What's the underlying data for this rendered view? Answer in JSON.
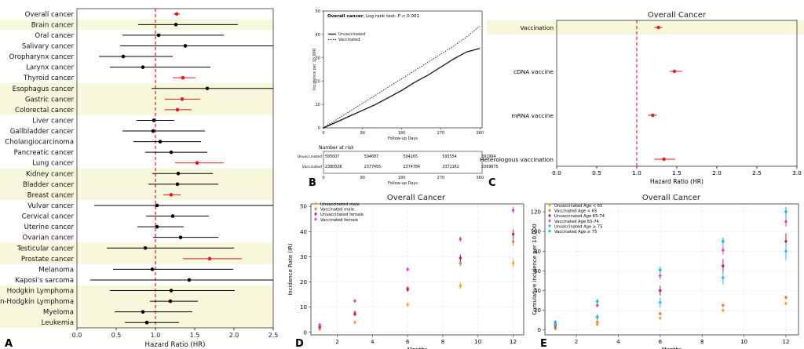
{
  "chart_data": [
    {
      "id": "A",
      "type": "forest",
      "panel_label": "A",
      "xlabel": "Hazard Ratio (HR)",
      "xlim": [
        0.0,
        2.5
      ],
      "xticks": [
        "0.0",
        "0.5",
        "1.0",
        "1.5",
        "2.0",
        "2.5"
      ],
      "reference_line": 1.0,
      "highlight_color": "#e41a1c",
      "rows": [
        {
          "label": "Overall cancer",
          "hr": 1.27,
          "lo": 1.23,
          "hi": 1.31,
          "sig": true,
          "band": false
        },
        {
          "label": "Brain cancer",
          "hr": 1.26,
          "lo": 0.78,
          "hi": 2.05,
          "sig": false,
          "band": true
        },
        {
          "label": "Oral cancer",
          "hr": 1.04,
          "lo": 0.58,
          "hi": 1.87,
          "sig": false,
          "band": false
        },
        {
          "label": "Salivary cancer",
          "hr": 1.38,
          "lo": 0.55,
          "hi": 2.5,
          "sig": false,
          "band": false
        },
        {
          "label": "Oropharynx cancer",
          "hr": 0.59,
          "lo": 0.28,
          "hi": 1.22,
          "sig": false,
          "band": false
        },
        {
          "label": "Larynx cancer",
          "hr": 0.84,
          "lo": 0.42,
          "hi": 1.7,
          "sig": false,
          "band": false
        },
        {
          "label": "Thyroid cancer",
          "hr": 1.35,
          "lo": 1.22,
          "hi": 1.51,
          "sig": true,
          "band": false
        },
        {
          "label": "Esophagus cancer",
          "hr": 1.66,
          "lo": 0.95,
          "hi": 2.5,
          "sig": false,
          "band": true
        },
        {
          "label": "Gastric cancer",
          "hr": 1.34,
          "lo": 1.12,
          "hi": 1.57,
          "sig": true,
          "band": true
        },
        {
          "label": "Colorectal cancer",
          "hr": 1.28,
          "lo": 1.12,
          "hi": 1.46,
          "sig": true,
          "band": true
        },
        {
          "label": "Liver cancer",
          "hr": 0.98,
          "lo": 0.76,
          "hi": 1.24,
          "sig": false,
          "band": false
        },
        {
          "label": "Gallbladder cancer",
          "hr": 0.97,
          "lo": 0.58,
          "hi": 1.63,
          "sig": false,
          "band": false
        },
        {
          "label": "Cholangiocarcinoma",
          "hr": 1.06,
          "lo": 0.72,
          "hi": 1.58,
          "sig": false,
          "band": false
        },
        {
          "label": "Pancreatic cancer",
          "hr": 1.2,
          "lo": 0.87,
          "hi": 1.66,
          "sig": false,
          "band": false
        },
        {
          "label": "Lung cancer",
          "hr": 1.53,
          "lo": 1.25,
          "hi": 1.87,
          "sig": true,
          "band": false
        },
        {
          "label": "Kidney cancer",
          "hr": 1.29,
          "lo": 0.96,
          "hi": 1.73,
          "sig": false,
          "band": true
        },
        {
          "label": "Bladder cancer",
          "hr": 1.28,
          "lo": 0.91,
          "hi": 1.8,
          "sig": false,
          "band": true
        },
        {
          "label": "Breast cancer",
          "hr": 1.2,
          "lo": 1.1,
          "hi": 1.32,
          "sig": true,
          "band": true
        },
        {
          "label": "Vulvar cancer",
          "hr": 1.02,
          "lo": 0.22,
          "hi": 2.5,
          "sig": false,
          "band": false
        },
        {
          "label": "Cervical cancer",
          "hr": 1.22,
          "lo": 0.88,
          "hi": 1.68,
          "sig": false,
          "band": false
        },
        {
          "label": "Uterine cancer",
          "hr": 1.02,
          "lo": 0.77,
          "hi": 1.36,
          "sig": false,
          "band": false
        },
        {
          "label": "Ovarian cancer",
          "hr": 1.32,
          "lo": 0.97,
          "hi": 1.8,
          "sig": false,
          "band": false
        },
        {
          "label": "Testicular cancer",
          "hr": 0.87,
          "lo": 0.38,
          "hi": 2.0,
          "sig": false,
          "band": true
        },
        {
          "label": "Prostate cancer",
          "hr": 1.69,
          "lo": 1.35,
          "hi": 2.1,
          "sig": true,
          "band": true
        },
        {
          "label": "Melanoma",
          "hr": 0.96,
          "lo": 0.46,
          "hi": 1.99,
          "sig": false,
          "band": false
        },
        {
          "label": "Kaposi's sarcoma",
          "hr": 1.43,
          "lo": 0.17,
          "hi": 2.5,
          "sig": false,
          "band": false
        },
        {
          "label": "Hodgkin Lymphoma",
          "hr": 1.2,
          "lo": 0.42,
          "hi": 2.01,
          "sig": false,
          "band": true
        },
        {
          "label": "Non-Hodgkin Lymphoma",
          "hr": 1.19,
          "lo": 0.93,
          "hi": 1.54,
          "sig": false,
          "band": true
        },
        {
          "label": "Myeloma",
          "hr": 0.84,
          "lo": 0.48,
          "hi": 1.47,
          "sig": false,
          "band": true
        },
        {
          "label": "Leukemia",
          "hr": 0.89,
          "lo": 0.61,
          "hi": 1.3,
          "sig": false,
          "band": true
        }
      ]
    },
    {
      "id": "B",
      "type": "line",
      "panel_label": "B",
      "title": "Overall cancer",
      "title_suffix": ", Log rank test: ",
      "p_text": "P",
      "p_value": " < 0.001",
      "ylabel": "Incidence per 10,000",
      "xlabel": "Follow-up Days",
      "xlim": [
        0,
        365
      ],
      "ylim": [
        0,
        50
      ],
      "xticks": [
        "0",
        "90",
        "180",
        "270",
        "360"
      ],
      "yticks": [
        "0",
        "10",
        "20",
        "30",
        "40",
        "50"
      ],
      "series": [
        {
          "name": "Unvaccinated",
          "style": "solid",
          "x": [
            0,
            30,
            60,
            90,
            120,
            150,
            180,
            210,
            240,
            270,
            300,
            330,
            360
          ],
          "y": [
            0,
            2.5,
            5,
            7.5,
            10,
            13,
            16,
            19.5,
            22.5,
            26,
            29.5,
            32.5,
            34
          ]
        },
        {
          "name": "Vaccinated",
          "style": "dotted",
          "x": [
            0,
            30,
            60,
            90,
            120,
            150,
            180,
            210,
            240,
            270,
            300,
            330,
            360
          ],
          "y": [
            0,
            3.5,
            7,
            10.5,
            14,
            17.5,
            21,
            24.5,
            28,
            31.5,
            35,
            39,
            43.5
          ]
        }
      ],
      "risk_table": {
        "title": "Number at risk",
        "xlabel": "Follow-up Days",
        "xticks": [
          "0",
          "90",
          "180",
          "270",
          "360"
        ],
        "rows": [
          {
            "name": "Unvaccinated",
            "values": [
              "595007",
              "594687",
              "594165",
              "593554",
              "592994"
            ]
          },
          {
            "name": "Vaccinated",
            "values": [
              "2380028",
              "2377455",
              "2374784",
              "2372162",
              "2369675"
            ]
          }
        ]
      }
    },
    {
      "id": "C",
      "type": "forest",
      "panel_label": "C",
      "title": "Overall Cancer",
      "xlabel": "Hazard Ratio (HR)",
      "xlim": [
        0.0,
        3.0
      ],
      "xticks": [
        "0.0",
        "0.5",
        "1.0",
        "1.5",
        "2.0",
        "2.5",
        "3.0"
      ],
      "reference_line": 1.0,
      "rows": [
        {
          "label": "Vaccination",
          "hr": 1.27,
          "lo": 1.22,
          "hi": 1.32,
          "band": true
        },
        {
          "label": "cDNA vaccine",
          "hr": 1.47,
          "lo": 1.41,
          "hi": 1.57,
          "band": false
        },
        {
          "label": "mRNA vaccine",
          "hr": 1.2,
          "lo": 1.14,
          "hi": 1.25,
          "band": false
        },
        {
          "label": "Heterologous vaccination",
          "hr": 1.34,
          "lo": 1.22,
          "hi": 1.48,
          "band": false
        }
      ]
    },
    {
      "id": "D",
      "type": "scatter",
      "panel_label": "D",
      "title": "Overall Cancer",
      "xlabel": "Months",
      "ylabel": "Incidence Rate (IR)",
      "xlim": [
        0.5,
        12.6
      ],
      "ylim": [
        -1,
        51
      ],
      "xticks": [
        2,
        4,
        6,
        8,
        10,
        12
      ],
      "yticks": [
        0,
        10,
        20,
        30,
        40,
        50
      ],
      "series": [
        {
          "name": "Unvaccinated male",
          "color": "#f5a623",
          "x": [
            1,
            3,
            6,
            9,
            12
          ],
          "y": [
            1.2,
            4.0,
            11.0,
            18.5,
            27.5
          ],
          "err": [
            0.5,
            0.6,
            0.9,
            1.2,
            1.6
          ]
        },
        {
          "name": "Vaccinated male",
          "color": "#e07b39",
          "x": [
            1,
            3,
            6,
            9,
            12
          ],
          "y": [
            1.8,
            8.0,
            17.5,
            27.5,
            36.0
          ],
          "err": [
            0.4,
            0.5,
            0.8,
            1.2,
            1.5
          ]
        },
        {
          "name": "Unvaccinated female",
          "color": "#c2185b",
          "x": [
            1,
            3,
            6,
            9,
            12
          ],
          "y": [
            2.2,
            7.2,
            17.0,
            29.5,
            39.0
          ],
          "err": [
            0.5,
            0.6,
            0.9,
            1.4,
            1.8
          ]
        },
        {
          "name": "Vaccinated female",
          "color": "#e040c8",
          "x": [
            1,
            3,
            6,
            9,
            12
          ],
          "y": [
            3.0,
            12.5,
            25.0,
            37.0,
            48.5
          ],
          "err": [
            0.4,
            0.6,
            0.8,
            1.0,
            1.2
          ]
        }
      ]
    },
    {
      "id": "E",
      "type": "scatter",
      "panel_label": "E",
      "title": "Overall Cancer",
      "xlabel": "Months",
      "ylabel": "Cumulative incidence per 10,000",
      "xlim": [
        0.5,
        12.6
      ],
      "ylim": [
        -5,
        128
      ],
      "xticks": [
        2,
        4,
        6,
        8,
        10,
        12
      ],
      "yticks": [
        0,
        20,
        40,
        60,
        80,
        100,
        120
      ],
      "series": [
        {
          "name": "Unvaccinated Age < 65",
          "color": "#f5a623",
          "x": [
            1,
            3,
            6,
            9,
            12
          ],
          "y": [
            1.5,
            5.5,
            12.0,
            20.0,
            27.0
          ],
          "err": [
            0.4,
            0.6,
            0.8,
            1.0,
            1.3
          ]
        },
        {
          "name": "Vaccinated Age < 65",
          "color": "#e07b39",
          "x": [
            1,
            3,
            6,
            9,
            12
          ],
          "y": [
            2.0,
            8.0,
            16.5,
            25.0,
            33.0
          ],
          "err": [
            0.3,
            0.5,
            0.7,
            0.9,
            1.1
          ]
        },
        {
          "name": "Unvaccinated Age 65-74",
          "color": "#c2185b",
          "x": [
            1,
            3,
            6,
            9,
            12
          ],
          "y": [
            4.5,
            13.0,
            40.0,
            65.0,
            90.0
          ],
          "err": [
            1.2,
            2.5,
            5.0,
            7.0,
            8.0
          ]
        },
        {
          "name": "Vaccinated Age 65-74",
          "color": "#e040c8",
          "x": [
            1,
            3,
            6,
            9,
            12
          ],
          "y": [
            6.0,
            25.0,
            55.0,
            81.0,
            110.0
          ],
          "err": [
            0.8,
            2.0,
            3.5,
            4.5,
            5.0
          ]
        },
        {
          "name": "Unvaccinated Age ≥ 75",
          "color": "#29b6f6",
          "x": [
            1,
            3,
            6,
            9,
            12
          ],
          "y": [
            5.5,
            13.0,
            28.0,
            53.0,
            80.0
          ],
          "err": [
            1.5,
            3.0,
            5.0,
            7.0,
            9.0
          ]
        },
        {
          "name": "Vaccinated Age ≥ 75",
          "color": "#00bcd4",
          "x": [
            1,
            3,
            6,
            9,
            12
          ],
          "y": [
            8.0,
            29.0,
            61.0,
            90.0,
            120.0
          ],
          "err": [
            1.0,
            2.5,
            3.5,
            4.0,
            5.0
          ]
        }
      ]
    }
  ]
}
